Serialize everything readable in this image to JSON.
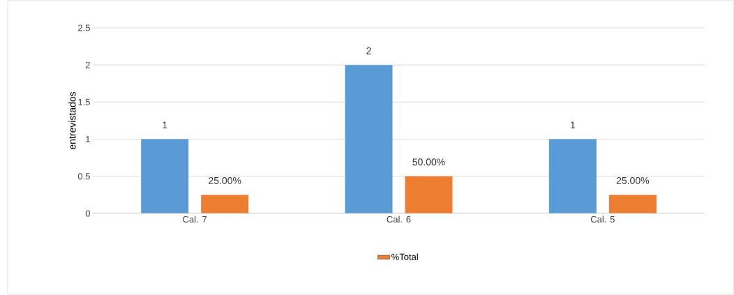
{
  "chart_data": {
    "type": "bar",
    "ylabel": "entrevistados",
    "categories": [
      "Cal. 7",
      "Cal. 6",
      "Cal. 5"
    ],
    "series": [
      {
        "color": "#5b9bd5",
        "values": [
          1,
          2,
          1
        ],
        "value_labels": [
          "1",
          "2",
          "1"
        ]
      },
      {
        "name": "%Total",
        "color": "#ed7d31",
        "values": [
          0.25,
          0.5,
          0.25
        ],
        "value_labels": [
          "25.00%",
          "50.00%",
          "25.00%"
        ]
      }
    ],
    "ylim": [
      0,
      2.5
    ],
    "yticks": [
      0,
      0.5,
      1,
      1.5,
      2,
      2.5
    ],
    "grid": "y",
    "legend": "bottom"
  }
}
